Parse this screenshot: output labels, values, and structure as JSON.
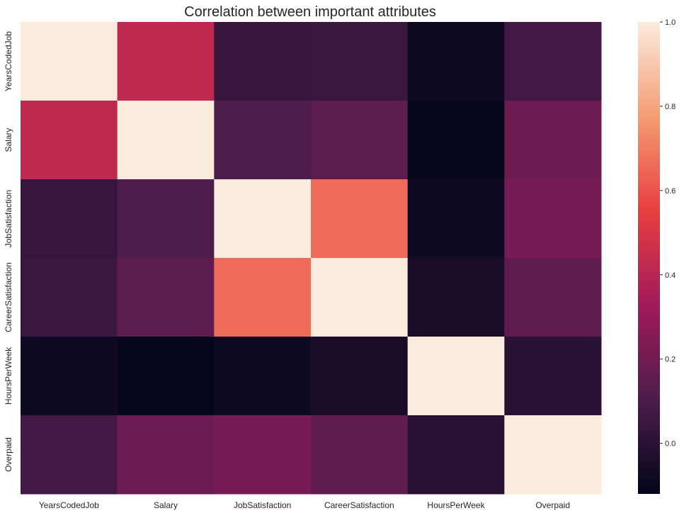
{
  "chart_data": {
    "type": "heatmap",
    "title": "Correlation between important attributes",
    "xlabel": "",
    "ylabel": "",
    "x_categories": [
      "YearsCodedJob",
      "Salary",
      "JobSatisfaction",
      "CareerSatisfaction",
      "HoursPerWeek",
      "Overpaid"
    ],
    "y_categories": [
      "YearsCodedJob",
      "Salary",
      "JobSatisfaction",
      "CareerSatisfaction",
      "HoursPerWeek",
      "Overpaid"
    ],
    "values": [
      [
        1.0,
        0.42,
        0.04,
        0.05,
        -0.08,
        0.07
      ],
      [
        0.42,
        1.0,
        0.11,
        0.15,
        -0.11,
        0.19
      ],
      [
        0.04,
        0.11,
        1.0,
        0.66,
        -0.08,
        0.21
      ],
      [
        0.05,
        0.15,
        0.66,
        1.0,
        -0.05,
        0.16
      ],
      [
        -0.08,
        -0.11,
        -0.08,
        -0.05,
        1.0,
        0.0
      ],
      [
        0.07,
        0.19,
        0.21,
        0.16,
        0.0,
        1.0
      ]
    ],
    "colorbar": {
      "min": -0.12,
      "max": 1.0,
      "ticks": [
        0.0,
        0.2,
        0.4,
        0.6,
        0.8,
        1.0
      ],
      "tick_labels": [
        "0.0",
        "0.2",
        "0.4",
        "0.6",
        "0.8",
        "1.0"
      ],
      "colormap": "rocket",
      "color_stops": [
        "#03051a",
        "#4c1d4b",
        "#a11a5b",
        "#e83f3f",
        "#f69c73",
        "#faebdd"
      ]
    },
    "grid": false
  }
}
